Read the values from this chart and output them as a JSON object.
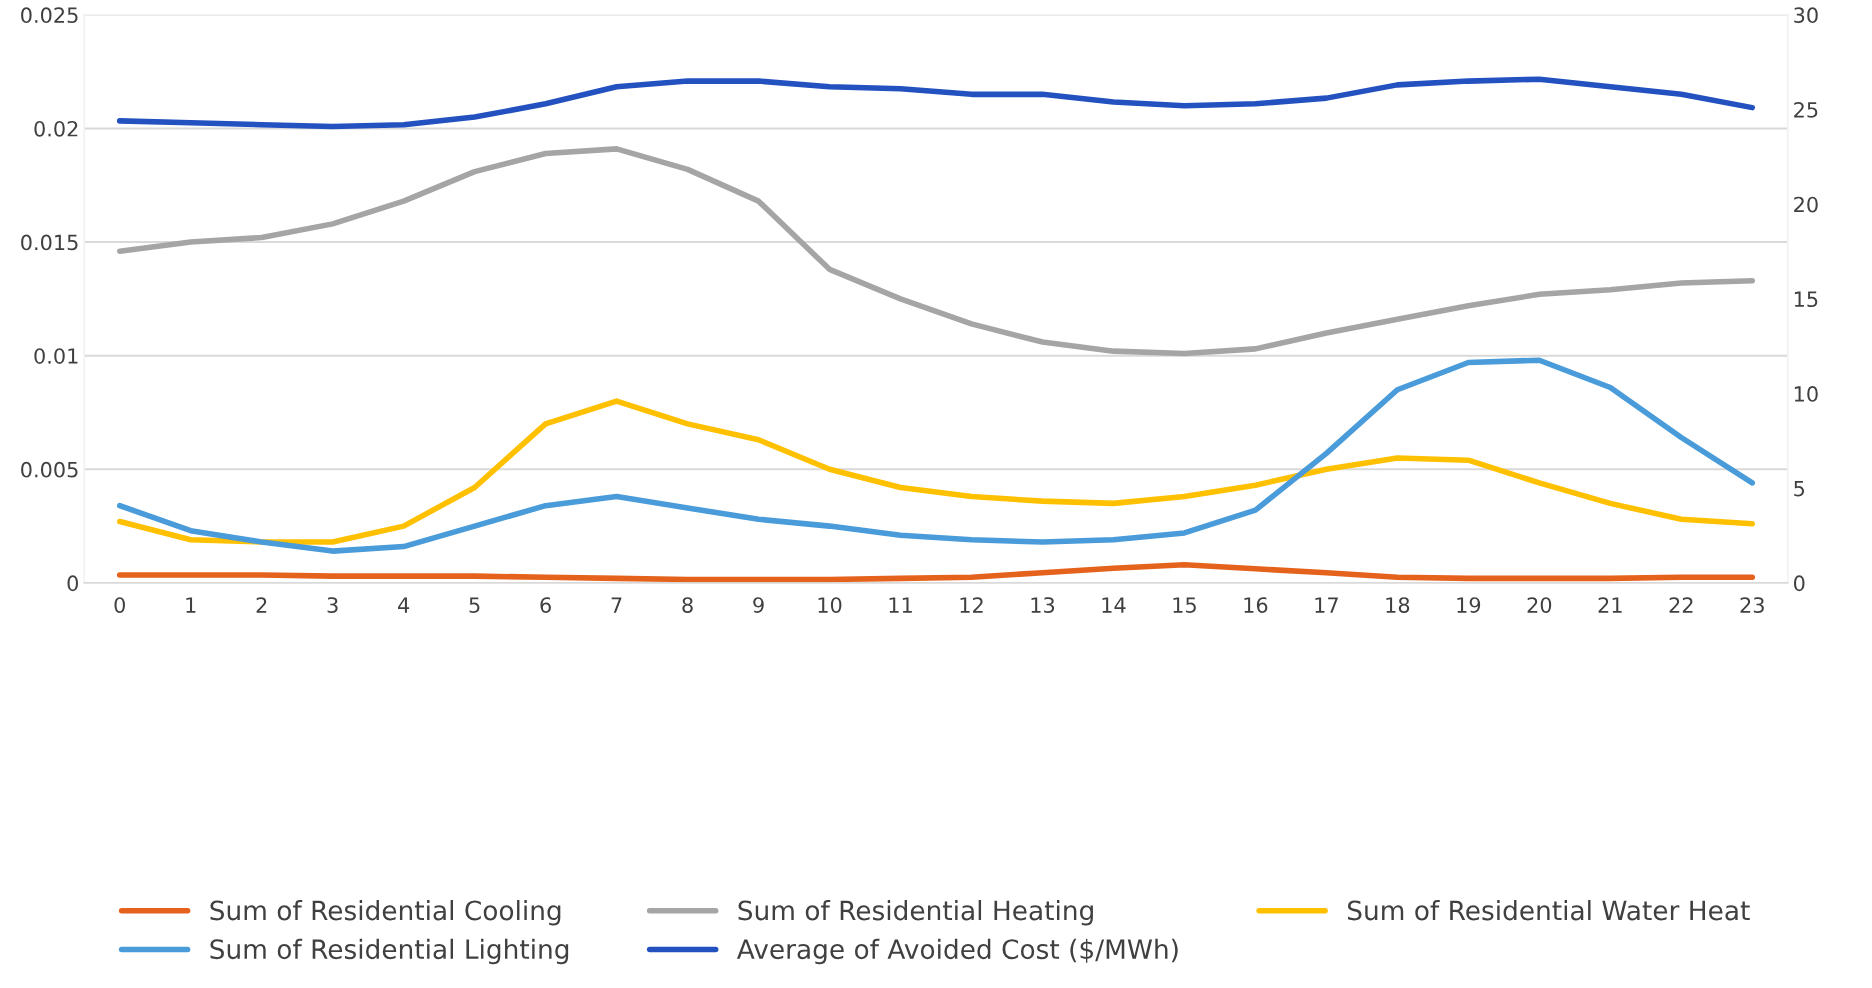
{
  "chart_data": {
    "type": "line",
    "categories": [
      "0",
      "1",
      "2",
      "3",
      "4",
      "5",
      "6",
      "7",
      "8",
      "9",
      "10",
      "11",
      "12",
      "13",
      "14",
      "15",
      "16",
      "17",
      "18",
      "19",
      "20",
      "21",
      "22",
      "23"
    ],
    "series": [
      {
        "name": "Sum of Residential Cooling",
        "color": "#e4621c",
        "values": [
          0.00035,
          0.00035,
          0.00035,
          0.0003,
          0.0003,
          0.0003,
          0.00025,
          0.0002,
          0.00015,
          0.00015,
          0.00015,
          0.0002,
          0.00025,
          0.00045,
          0.00065,
          0.0008,
          0.00062,
          0.00045,
          0.00025,
          0.0002,
          0.0002,
          0.0002,
          0.00025,
          0.00025
        ]
      },
      {
        "name": "Sum of Residential Heating",
        "color": "#a5a5a5",
        "values": [
          0.0146,
          0.015,
          0.0152,
          0.0158,
          0.0168,
          0.0181,
          0.0189,
          0.0191,
          0.0182,
          0.0168,
          0.0138,
          0.0125,
          0.0114,
          0.0106,
          0.0102,
          0.0101,
          0.0103,
          0.011,
          0.0116,
          0.0122,
          0.0127,
          0.0129,
          0.0132,
          0.0133
        ]
      },
      {
        "name": "Sum of Residential Water Heat",
        "color": "#ffc000",
        "values": [
          0.0027,
          0.0019,
          0.0018,
          0.0018,
          0.0025,
          0.0042,
          0.007,
          0.008,
          0.007,
          0.0063,
          0.005,
          0.0042,
          0.0038,
          0.0036,
          0.0035,
          0.0038,
          0.0043,
          0.005,
          0.0055,
          0.0054,
          0.0044,
          0.0035,
          0.0028,
          0.0026
        ]
      },
      {
        "name": "Sum of Residential Lighting",
        "color": "#4a9bd9",
        "values": [
          0.0034,
          0.0023,
          0.0018,
          0.0014,
          0.0016,
          0.0025,
          0.0034,
          0.0038,
          0.0033,
          0.0028,
          0.0025,
          0.0021,
          0.0019,
          0.0018,
          0.0019,
          0.0022,
          0.0032,
          0.0057,
          0.0085,
          0.0097,
          0.0098,
          0.0086,
          0.0064,
          0.0044
        ]
      },
      {
        "name": "Average of Avoided Cost ($/MWh)",
        "color": "#2451c0",
        "axis": "y2",
        "values": [
          24.4,
          24.3,
          24.2,
          24.1,
          24.2,
          24.6,
          25.3,
          26.2,
          26.5,
          26.5,
          26.2,
          26.1,
          25.8,
          25.8,
          25.4,
          25.2,
          25.3,
          25.6,
          26.3,
          26.5,
          26.6,
          26.2,
          25.8,
          25.1
        ]
      }
    ],
    "ylim": [
      0,
      0.025
    ],
    "yticks": [
      0,
      0.005,
      0.01,
      0.015,
      0.02,
      0.025
    ],
    "y2lim": [
      0,
      30
    ],
    "y2ticks": [
      0,
      5,
      10,
      15,
      20,
      25,
      30
    ],
    "grid": "y",
    "legend": "bottom",
    "marker": "none",
    "line_style": "solid"
  }
}
